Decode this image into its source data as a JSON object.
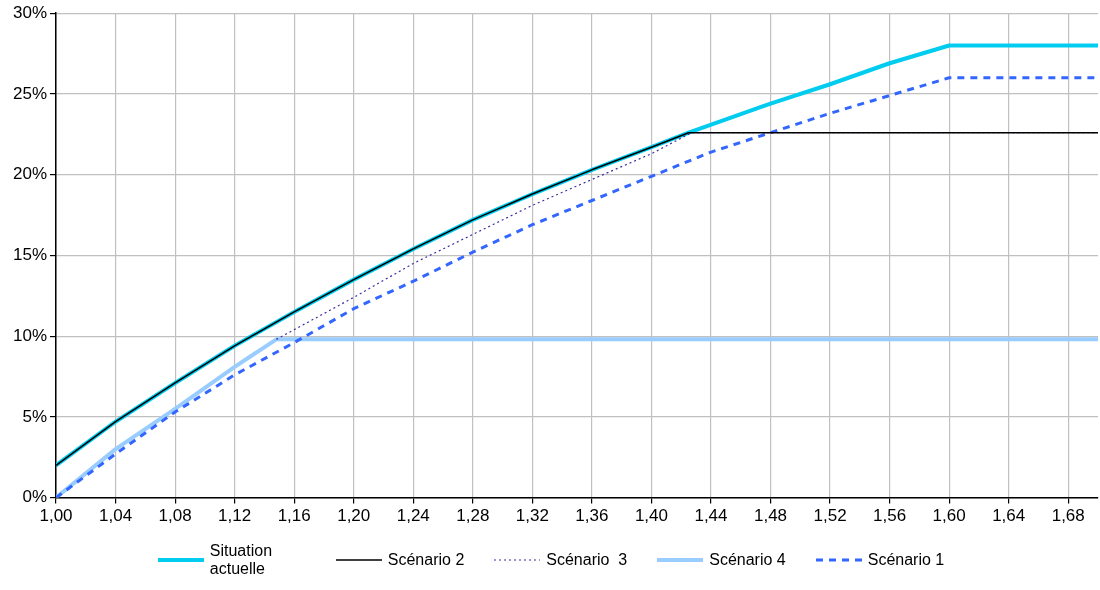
{
  "chart_data": {
    "type": "line",
    "xlim": [
      1.0,
      1.7
    ],
    "ylim": [
      0,
      30
    ],
    "xticks": [
      {
        "value": 1.0,
        "label": "1,00"
      },
      {
        "value": 1.04,
        "label": "1,04"
      },
      {
        "value": 1.08,
        "label": "1,08"
      },
      {
        "value": 1.12,
        "label": "1,12"
      },
      {
        "value": 1.16,
        "label": "1,16"
      },
      {
        "value": 1.2,
        "label": "1,20"
      },
      {
        "value": 1.24,
        "label": "1,24"
      },
      {
        "value": 1.28,
        "label": "1,28"
      },
      {
        "value": 1.32,
        "label": "1,32"
      },
      {
        "value": 1.36,
        "label": "1,36"
      },
      {
        "value": 1.4,
        "label": "1,40"
      },
      {
        "value": 1.44,
        "label": "1,44"
      },
      {
        "value": 1.48,
        "label": "1,48"
      },
      {
        "value": 1.52,
        "label": "1,52"
      },
      {
        "value": 1.56,
        "label": "1,56"
      },
      {
        "value": 1.6,
        "label": "1,60"
      },
      {
        "value": 1.64,
        "label": "1,64"
      },
      {
        "value": 1.68,
        "label": "1,68"
      }
    ],
    "yticks": [
      {
        "value": 0,
        "label": "0%"
      },
      {
        "value": 5,
        "label": "5%"
      },
      {
        "value": 10,
        "label": "10%"
      },
      {
        "value": 15,
        "label": "15%"
      },
      {
        "value": 20,
        "label": "20%"
      },
      {
        "value": 25,
        "label": "25%"
      },
      {
        "value": 30,
        "label": "30%"
      }
    ],
    "grid": true,
    "legend": "bottom",
    "marker": "none",
    "series": [
      {
        "name": "Situation actuelle",
        "color": "#00ccf0",
        "line_style": "solid",
        "x": [
          1.0,
          1.04,
          1.08,
          1.12,
          1.16,
          1.2,
          1.24,
          1.28,
          1.32,
          1.36,
          1.4,
          1.425,
          1.48,
          1.52,
          1.56,
          1.6,
          1.7
        ],
        "values": [
          2.0,
          4.7,
          7.1,
          9.4,
          11.5,
          13.5,
          15.4,
          17.2,
          18.8,
          20.3,
          21.7,
          22.6,
          24.4,
          25.6,
          26.9,
          28.0,
          28.0
        ]
      },
      {
        "name": "Scénario 2",
        "color": "#000000",
        "line_style": "solid",
        "x": [
          1.0,
          1.04,
          1.08,
          1.12,
          1.16,
          1.2,
          1.24,
          1.28,
          1.32,
          1.36,
          1.4,
          1.425,
          1.7
        ],
        "values": [
          2.0,
          4.7,
          7.1,
          9.4,
          11.5,
          13.5,
          15.4,
          17.2,
          18.8,
          20.3,
          21.7,
          22.6,
          22.6
        ]
      },
      {
        "name": "Scénario  3",
        "color": "#3a2ea0",
        "line_style": "dotted",
        "x": [
          1.148,
          1.2,
          1.24,
          1.28,
          1.32,
          1.36,
          1.4,
          1.427,
          1.7
        ],
        "values": [
          9.8,
          12.4,
          14.5,
          16.3,
          18.1,
          19.7,
          21.3,
          22.6,
          22.6
        ]
      },
      {
        "name": "Scénario 4",
        "color": "#99ccff",
        "line_style": "solid",
        "x": [
          1.0,
          1.04,
          1.08,
          1.12,
          1.148,
          1.7
        ],
        "values": [
          0.0,
          3.0,
          5.5,
          8.1,
          9.8,
          9.8
        ]
      },
      {
        "name": "Scénario 1",
        "color": "#3366ff",
        "line_style": "dashed",
        "x": [
          1.0,
          1.04,
          1.08,
          1.12,
          1.16,
          1.2,
          1.24,
          1.28,
          1.32,
          1.36,
          1.4,
          1.44,
          1.48,
          1.52,
          1.56,
          1.6,
          1.7
        ],
        "values": [
          0.0,
          2.7,
          5.3,
          7.6,
          9.6,
          11.7,
          13.4,
          15.2,
          16.9,
          18.4,
          19.9,
          21.4,
          22.6,
          23.8,
          24.9,
          26.0,
          26.0
        ]
      }
    ]
  }
}
